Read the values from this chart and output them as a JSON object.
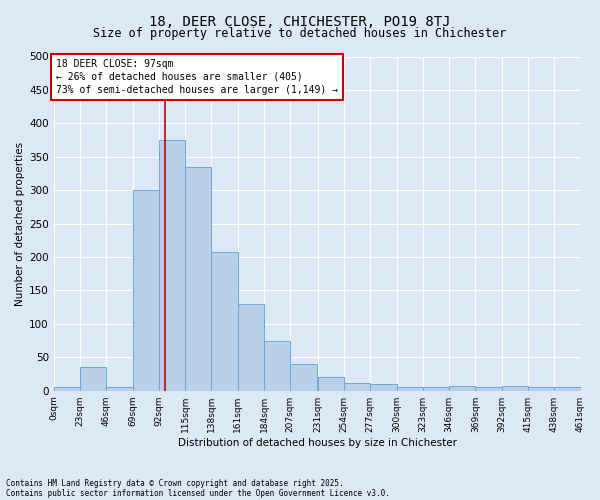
{
  "title1": "18, DEER CLOSE, CHICHESTER, PO19 8TJ",
  "title2": "Size of property relative to detached houses in Chichester",
  "xlabel": "Distribution of detached houses by size in Chichester",
  "ylabel": "Number of detached properties",
  "footnote1": "Contains HM Land Registry data © Crown copyright and database right 2025.",
  "footnote2": "Contains public sector information licensed under the Open Government Licence v3.0.",
  "annotation_line1": "18 DEER CLOSE: 97sqm",
  "annotation_line2": "← 26% of detached houses are smaller (405)",
  "annotation_line3": "73% of semi-detached houses are larger (1,149) →",
  "bar_color": "#b8d0ea",
  "bar_edge_color": "#6aaad4",
  "red_line_x": 97,
  "bin_edges": [
    0,
    23,
    46,
    69,
    92,
    115,
    138,
    161,
    184,
    207,
    231,
    254,
    277,
    300,
    323,
    346,
    369,
    392,
    415,
    438,
    461
  ],
  "bar_heights": [
    5,
    35,
    5,
    300,
    375,
    335,
    208,
    130,
    75,
    40,
    20,
    12,
    10,
    5,
    5,
    7,
    5,
    7,
    5,
    5
  ],
  "ylim": [
    0,
    500
  ],
  "yticks": [
    0,
    50,
    100,
    150,
    200,
    250,
    300,
    350,
    400,
    450,
    500
  ],
  "bg_color": "#dce8f5",
  "plot_bg_color": "#dce8f5",
  "grid_color": "#ffffff",
  "annotation_box_color": "#ffffff",
  "annotation_box_edge": "#cc0000",
  "red_line_color": "#cc0000",
  "title1_fontsize": 10,
  "title2_fontsize": 8.5,
  "ylabel_fontsize": 7.5,
  "xlabel_fontsize": 7.5,
  "ytick_fontsize": 7.5,
  "xtick_fontsize": 6.5,
  "annot_fontsize": 7,
  "footnote_fontsize": 5.5
}
